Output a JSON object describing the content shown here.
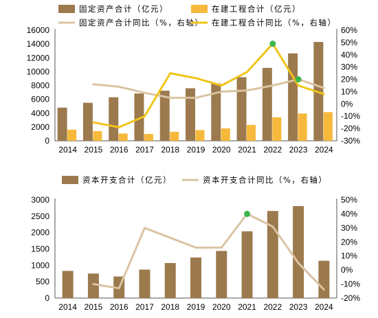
{
  "chart_data": [
    {
      "type": "bar",
      "categories": [
        "2014",
        "2015",
        "2016",
        "2017",
        "2018",
        "2019",
        "2020",
        "2021",
        "2022",
        "2023",
        "2024"
      ],
      "ylim_left": [
        0,
        16000
      ],
      "ylim_right": [
        -30,
        60
      ],
      "left_ticks": [
        "0",
        "2000",
        "4000",
        "6000",
        "8000",
        "10000",
        "12000",
        "14000",
        "16000"
      ],
      "right_ticks": [
        "-30%",
        "-20%",
        "-10%",
        "0%",
        "10%",
        "20%",
        "30%",
        "40%",
        "50%",
        "60%"
      ],
      "series": [
        {
          "name": "固定资产合计（亿元）",
          "kind": "bar",
          "axis": "left",
          "color": "#9c7a4e",
          "values": [
            4800,
            5500,
            6300,
            6850,
            7250,
            7600,
            8300,
            9200,
            10550,
            12650,
            14300
          ]
        },
        {
          "name": "在建工程合计（亿元）",
          "kind": "bar",
          "axis": "left",
          "color": "#f6b93b",
          "values": [
            1600,
            1400,
            1050,
            1000,
            1300,
            1550,
            1800,
            2300,
            3400,
            3950,
            4150
          ]
        },
        {
          "name": "固定资产合计同比（%，右轴）",
          "kind": "line",
          "axis": "right",
          "color": "#d9c4a3",
          "values": [
            null,
            16,
            14,
            9,
            5,
            5,
            10,
            11,
            15,
            20,
            13
          ]
        },
        {
          "name": "在建工程合计同比（%，右轴）",
          "kind": "line",
          "axis": "right",
          "color": "#f0c419",
          "values": [
            null,
            -15,
            -19,
            -10,
            25,
            21,
            15,
            26,
            49,
            15,
            8
          ]
        }
      ],
      "highlights": [
        {
          "series": 3,
          "index": 8,
          "color": "#3cb54a"
        },
        {
          "series": 2,
          "index": 9,
          "color": "#3cb54a"
        }
      ]
    },
    {
      "type": "bar",
      "categories": [
        "2014",
        "2015",
        "2016",
        "2017",
        "2018",
        "2019",
        "2020",
        "2021",
        "2022",
        "2023",
        "2024"
      ],
      "ylim_left": [
        0,
        3000
      ],
      "ylim_right": [
        -20,
        50
      ],
      "left_ticks": [
        "0",
        "500",
        "1000",
        "1500",
        "2000",
        "2500",
        "3000"
      ],
      "right_ticks": [
        "-20%",
        "-10%",
        "0%",
        "10%",
        "20%",
        "30%",
        "40%",
        "50%"
      ],
      "series": [
        {
          "name": "资本开支合计（亿元）",
          "kind": "bar",
          "axis": "left",
          "color": "#9c7a4e",
          "values": [
            830,
            750,
            660,
            870,
            1070,
            1240,
            1440,
            2040,
            2660,
            2810,
            1140
          ]
        },
        {
          "name": "资本开支合计同比（%，右轴）",
          "kind": "line",
          "axis": "right",
          "color": "#d9c4a3",
          "values": [
            null,
            -10,
            -13,
            30,
            23,
            16,
            16,
            40,
            31,
            5,
            -14
          ]
        }
      ],
      "highlights": [
        {
          "series": 1,
          "index": 7,
          "color": "#3cb54a"
        }
      ]
    }
  ]
}
